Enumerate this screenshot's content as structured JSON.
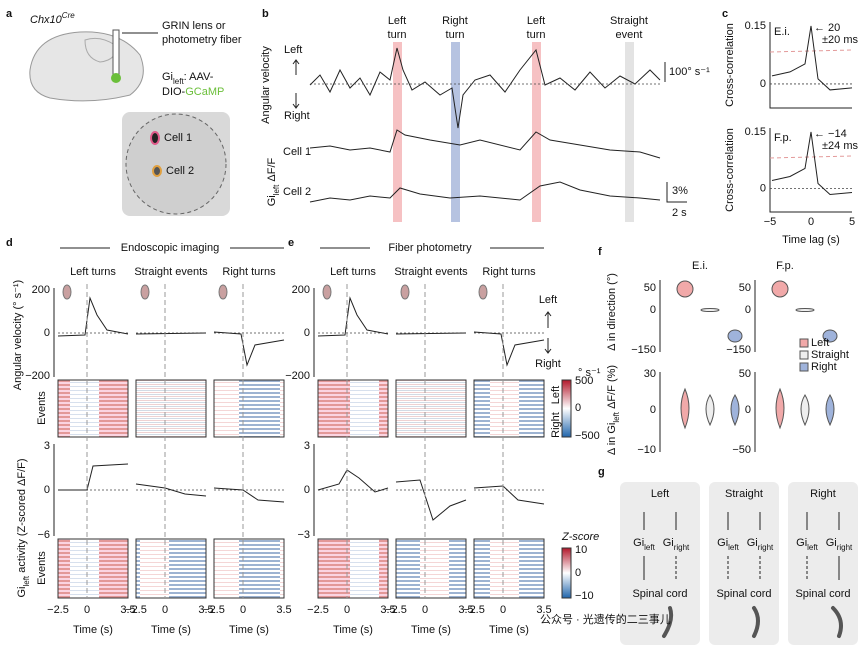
{
  "a": {
    "label": "a",
    "mouse": {
      "main": "Chx10",
      "sup": "Cre"
    },
    "fiber": [
      "GRIN lens or",
      "photometry fiber"
    ],
    "virus": {
      "gi": "Gi",
      "sub": "left",
      "rest": ": AAV-",
      "line2": "DIO-",
      "gcamp": "GCaMP"
    },
    "cells": [
      "Cell 1",
      "Cell 2"
    ]
  },
  "b": {
    "label": "b",
    "events": [
      [
        "Left",
        "turn"
      ],
      [
        "Right",
        "turn"
      ],
      [
        "Left",
        "turn"
      ],
      [
        "Straight",
        "event"
      ]
    ],
    "velocity": "Angular velocity",
    "left": "Left",
    "right": "Right",
    "vscale": "100° s⁻¹",
    "cells": [
      "Cell 1",
      "Cell 2"
    ],
    "dff": {
      "gi": "Gi",
      "sub": "left",
      "rest": " ΔF/F"
    },
    "yscale": "3%",
    "tscale": "2 s"
  },
  "c": {
    "label": "c",
    "plots": [
      {
        "tag": "E.i.",
        "peak": [
          "← 20",
          "±20 ms"
        ]
      },
      {
        "tag": "F.p.",
        "peak": [
          "← −14",
          "±24 ms"
        ]
      }
    ],
    "yticks": [
      "0.15",
      "0"
    ],
    "ylabel": "Cross-correlation",
    "xticks": [
      "−5",
      "0",
      "5"
    ],
    "xlabel": "Time lag (s)"
  },
  "d": {
    "label": "d",
    "title": "Endoscopic imaging",
    "activity_ticks": [
      "3",
      "0",
      "−6"
    ]
  },
  "e": {
    "label": "e",
    "title": "Fiber photometry",
    "activity_ticks": [
      "3",
      "0",
      "−3"
    ],
    "direction": [
      "Left",
      "Right"
    ]
  },
  "columns": [
    "Left turns",
    "Straight events",
    "Right turns"
  ],
  "velocity_ticks": [
    "200",
    "0",
    "−200"
  ],
  "velocity_label": "Angular velocity (° s⁻¹)",
  "events_label": "Events",
  "activity_label": {
    "gi": "Gi",
    "sub": "left",
    "rest": " activity (Z-scored ΔF/F)"
  },
  "time_ticks": [
    "−2.5",
    "0",
    "3.5"
  ],
  "time_label": "Time (s)",
  "colorbar_v": {
    "top": "Left",
    "bottom": "Right",
    "unit": "° s⁻¹",
    "ticks": [
      "500",
      "0",
      "−500"
    ]
  },
  "colorbar_z": {
    "title": "Z-score",
    "ticks": [
      "10",
      "0",
      "−10"
    ]
  },
  "f": {
    "label": "f",
    "groups": [
      "E.i.",
      "F.p."
    ],
    "dir_label": "Δ in direction (°)",
    "dir_ticks": [
      [
        "50",
        "0",
        "−150"
      ],
      [
        "50",
        "0",
        "−150"
      ]
    ],
    "dff_label": {
      "pre": "Δ in Gi",
      "sub": "left",
      "post": " ΔF/F (%)"
    },
    "dff_ticks": [
      [
        "30",
        "0",
        "−10"
      ],
      [
        "50",
        "0",
        "−50"
      ]
    ],
    "legend": [
      "Left",
      "Straight",
      "Right"
    ]
  },
  "g": {
    "label": "g",
    "boxes": [
      "Left",
      "Straight",
      "Right"
    ],
    "gi": "Gi",
    "left": "left",
    "right": "right",
    "cord": "Spinal cord"
  },
  "watermark": "公众号 · 光遗传的二三事儿"
}
